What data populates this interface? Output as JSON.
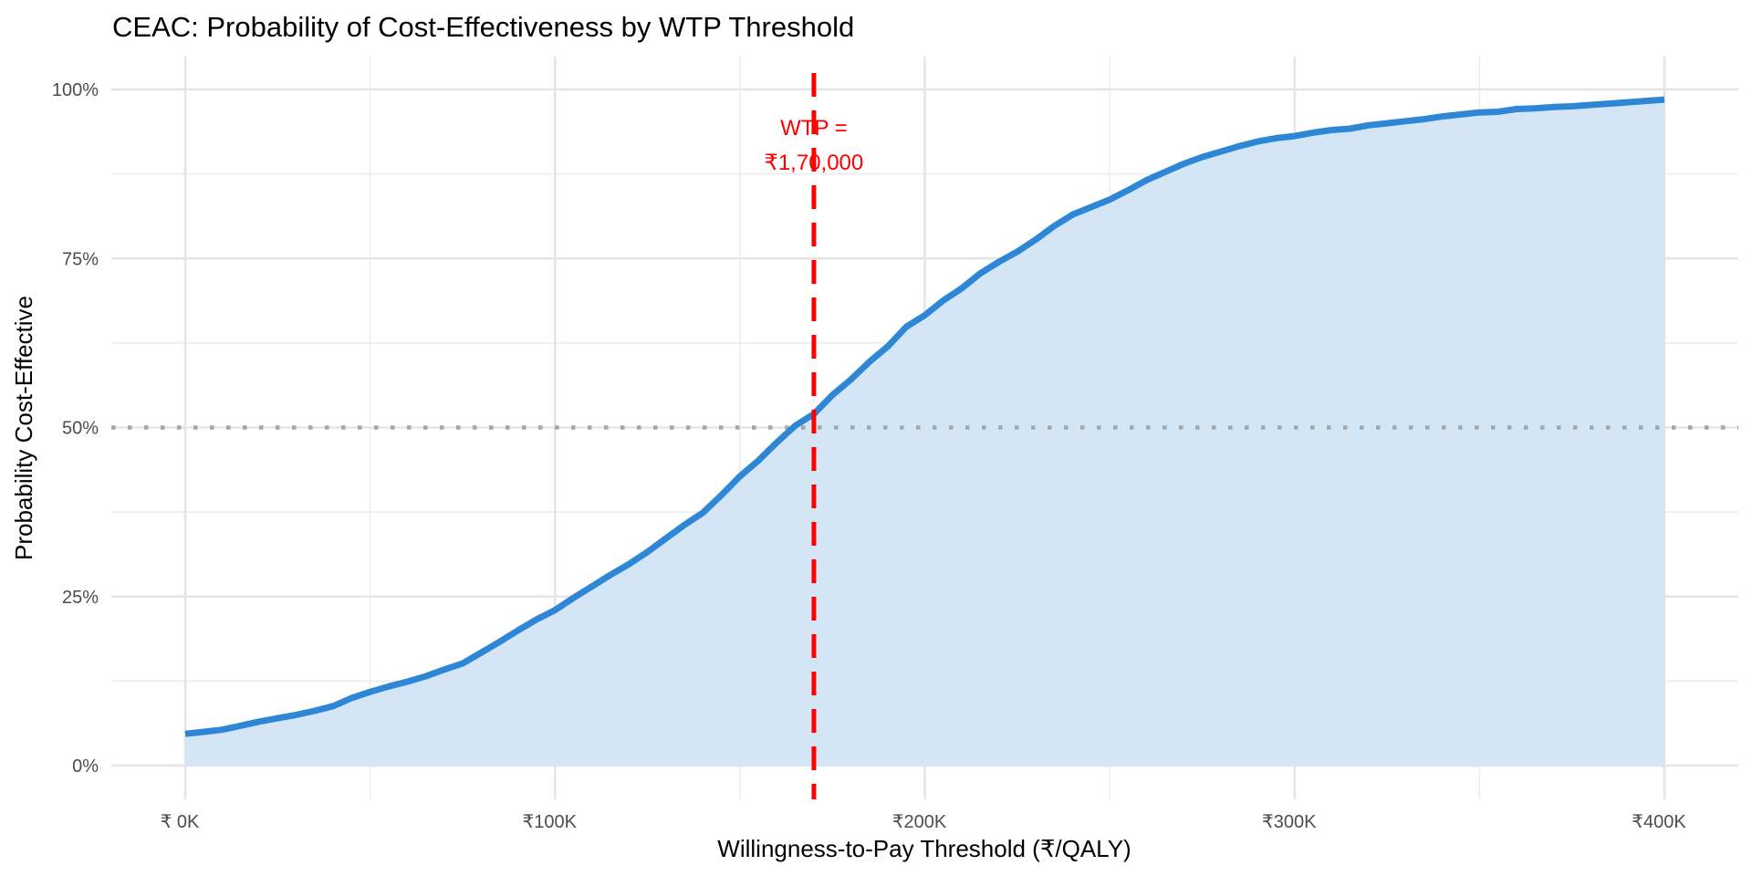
{
  "chart_data": {
    "type": "area",
    "title": "CEAC: Probability of Cost-Effectiveness by WTP Threshold",
    "xlabel": "Willingness-to-Pay Threshold (₹/QALY)",
    "ylabel": "Probability Cost-Effective",
    "xlim": [
      0,
      400000
    ],
    "ylim": [
      0,
      1
    ],
    "grid": true,
    "legend": "none",
    "x_ticks": [
      {
        "value": 0,
        "label": "₹ 0K"
      },
      {
        "value": 100000,
        "label": "₹100K"
      },
      {
        "value": 200000,
        "label": "₹200K"
      },
      {
        "value": 300000,
        "label": "₹300K"
      },
      {
        "value": 400000,
        "label": "₹400K"
      }
    ],
    "y_ticks": [
      {
        "value": 0,
        "label": "0%"
      },
      {
        "value": 0.25,
        "label": "25%"
      },
      {
        "value": 0.5,
        "label": "50%"
      },
      {
        "value": 0.75,
        "label": "75%"
      },
      {
        "value": 1.0,
        "label": "100%"
      }
    ],
    "series": [
      {
        "name": "Probability cost-effective",
        "color": "#2e86d6",
        "fill_color": "#d4e5f6",
        "x": [
          0,
          5000,
          10000,
          15000,
          20000,
          25000,
          30000,
          35000,
          40000,
          45000,
          50000,
          55000,
          60000,
          65000,
          70000,
          75000,
          80000,
          85000,
          90000,
          95000,
          100000,
          105000,
          110000,
          115000,
          120000,
          125000,
          130000,
          135000,
          140000,
          145000,
          150000,
          155000,
          160000,
          165000,
          170000,
          175000,
          180000,
          185000,
          190000,
          195000,
          200000,
          205000,
          210000,
          215000,
          220000,
          225000,
          230000,
          235000,
          240000,
          245000,
          250000,
          255000,
          260000,
          265000,
          270000,
          275000,
          280000,
          285000,
          290000,
          295000,
          300000,
          305000,
          310000,
          315000,
          320000,
          325000,
          330000,
          335000,
          340000,
          345000,
          350000,
          355000,
          360000,
          365000,
          370000,
          375000,
          380000,
          385000,
          390000,
          395000,
          400000
        ],
        "y": [
          0.047,
          0.05,
          0.053,
          0.059,
          0.065,
          0.07,
          0.075,
          0.081,
          0.088,
          0.1,
          0.109,
          0.117,
          0.124,
          0.132,
          0.142,
          0.151,
          0.167,
          0.183,
          0.2,
          0.216,
          0.23,
          0.248,
          0.265,
          0.282,
          0.298,
          0.316,
          0.336,
          0.356,
          0.374,
          0.4,
          0.428,
          0.451,
          0.478,
          0.503,
          0.52,
          0.548,
          0.571,
          0.597,
          0.62,
          0.649,
          0.666,
          0.688,
          0.706,
          0.728,
          0.745,
          0.76,
          0.778,
          0.798,
          0.815,
          0.826,
          0.837,
          0.851,
          0.866,
          0.878,
          0.89,
          0.9,
          0.908,
          0.916,
          0.923,
          0.928,
          0.931,
          0.936,
          0.94,
          0.942,
          0.947,
          0.95,
          0.953,
          0.956,
          0.96,
          0.963,
          0.966,
          0.967,
          0.971,
          0.972,
          0.974,
          0.975,
          0.977,
          0.979,
          0.981,
          0.983,
          0.985
        ]
      }
    ],
    "reference_lines": [
      {
        "orientation": "vertical",
        "value": 170000,
        "style": "dashed",
        "color": "#ff0000"
      },
      {
        "orientation": "horizontal",
        "value": 0.5,
        "style": "dotted",
        "color": "#a6a6a6"
      }
    ],
    "annotations": [
      {
        "text_line1": "WTP =",
        "text_line2": "₹1,70,000",
        "x": 170000,
        "y": 0.92,
        "color": "#ff0000"
      }
    ]
  }
}
